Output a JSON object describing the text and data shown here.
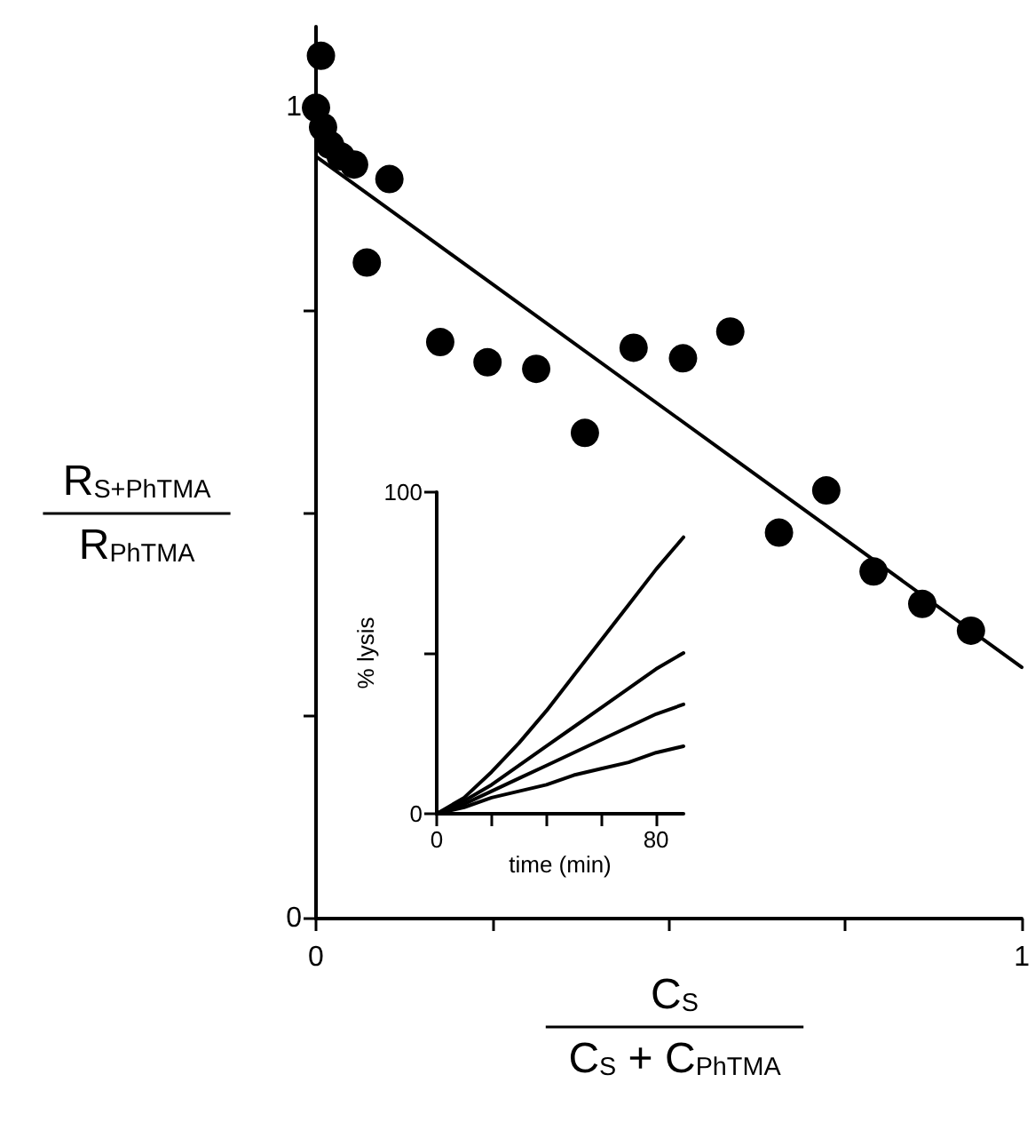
{
  "chart_data": [
    {
      "type": "scatter",
      "xlabel": "C$_{S}$\nC$_{S}$ + C$_{PhTMA}$",
      "ylabel": "R$_{S+PhTMA}$\nR$_{PhTMA}$",
      "xlim": [
        0,
        1
      ],
      "ylim": [
        0,
        1.1
      ],
      "xticks": [
        0,
        {
          "value": 0.25,
          "label": null
        },
        {
          "value": 0.5,
          "label": null
        },
        {
          "value": 0.75,
          "label": null
        },
        1
      ],
      "yticks": [
        0,
        {
          "value": 0.25,
          "label": null
        },
        {
          "value": 0.5,
          "label": null
        },
        {
          "value": 0.75,
          "label": null
        },
        1
      ],
      "marker": "circle",
      "grid": false,
      "series": [
        {
          "type": "scatter",
          "color": "#000000",
          "x": [
            0.007,
            0,
            0.01,
            0.02,
            0.035,
            0.054,
            0.104,
            0.072,
            0.176,
            0.243,
            0.312,
            0.381,
            0.45,
            0.52,
            0.587,
            0.656,
            0.723,
            0.79,
            0.859,
            0.928
          ],
          "values": [
            1.064,
            1.0,
            0.976,
            0.954,
            0.94,
            0.93,
            0.912,
            0.809,
            0.711,
            0.686,
            0.678,
            0.599,
            0.704,
            0.691,
            0.724,
            0.476,
            0.528,
            0.428,
            0.388,
            0.355
          ]
        },
        {
          "type": "line",
          "marker": "none",
          "color": "#000000",
          "x": [
            0,
            1
          ],
          "values": [
            0.94,
            0.31
          ]
        }
      ]
    },
    {
      "type": "line",
      "xlabel": "time (min)",
      "ylabel": "% lysis",
      "xlim": [
        0,
        90
      ],
      "ylim": [
        0,
        100
      ],
      "xticks": [
        0,
        {
          "value": 20,
          "label": null
        },
        {
          "value": 40,
          "label": null
        },
        {
          "value": 60,
          "label": null
        },
        80
      ],
      "yticks": [
        0,
        {
          "value": 50,
          "label": null
        },
        100
      ],
      "marker": "none",
      "grid": false,
      "series": [
        {
          "color": "#000000",
          "x": [
            0,
            10,
            20,
            30,
            40,
            50,
            60,
            70,
            80,
            90
          ],
          "values": [
            0,
            5,
            13,
            22,
            32,
            43,
            54,
            65,
            76,
            86
          ]
        },
        {
          "color": "#000000",
          "x": [
            0,
            10,
            20,
            30,
            40,
            50,
            60,
            70,
            80,
            90
          ],
          "values": [
            0,
            4,
            9,
            15,
            21,
            27,
            33,
            39,
            45,
            50
          ]
        },
        {
          "color": "#000000",
          "x": [
            0,
            10,
            20,
            30,
            40,
            50,
            60,
            70,
            80,
            90
          ],
          "values": [
            0,
            3,
            7,
            11,
            15,
            19,
            23,
            27,
            31,
            34
          ]
        },
        {
          "color": "#000000",
          "x": [
            0,
            10,
            20,
            30,
            40,
            50,
            60,
            70,
            80,
            90
          ],
          "values": [
            0,
            2,
            5,
            7,
            9,
            12,
            14,
            16,
            19,
            21
          ]
        }
      ]
    }
  ]
}
